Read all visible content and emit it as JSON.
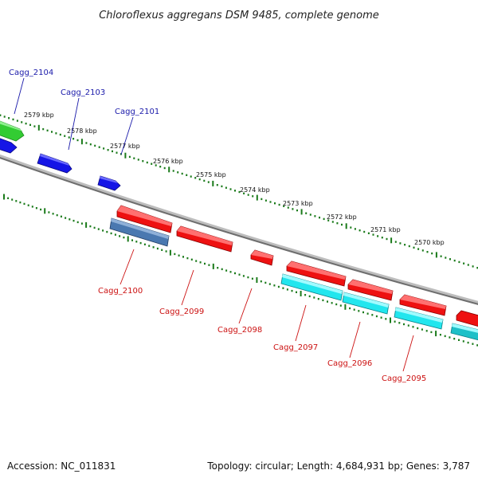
{
  "title": "Chloroflexus aggregans DSM 9485, complete genome",
  "footer": {
    "accession": "Accession: NC_011831",
    "summary": "Topology: circular; Length: 4,684,931 bp; Genes: 3,787"
  },
  "colors": {
    "backbone": "#777777",
    "ticks": "#1a7a1a",
    "forward_gene": "#1515e6",
    "reverse_gene": "#ee1111",
    "cyan_gene": "#22e6ee",
    "steel_gene": "#4a78b0",
    "green_gene": "#33cc33",
    "label_forward": "#1a1aaa",
    "label_reverse": "#cc1111"
  },
  "ticks": {
    "labels": [
      "2579 kbp",
      "2578 kbp",
      "2577 kbp",
      "2576 kbp",
      "2575 kbp",
      "2574 kbp",
      "2573 kbp",
      "2572 kbp",
      "2571 kbp",
      "2570 kbp"
    ]
  },
  "genes": {
    "forward_labels": [
      "Cagg_2104",
      "Cagg_2103",
      "Cagg_2101"
    ],
    "reverse_labels": [
      "Cagg_2100",
      "Cagg_2099",
      "Cagg_2098",
      "Cagg_2097",
      "Cagg_2096",
      "Cagg_2095"
    ]
  }
}
